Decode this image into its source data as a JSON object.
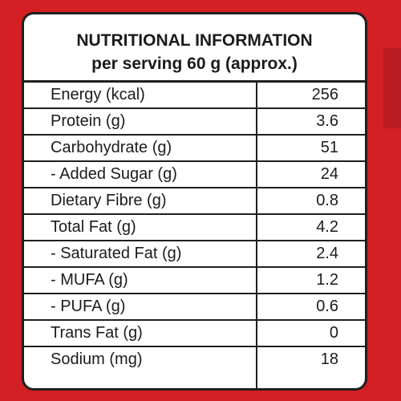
{
  "label": {
    "title": "NUTRITIONAL INFORMATION",
    "subtitle": "per serving 60 g (approx.)",
    "rows": [
      {
        "name": "Energy (kcal)",
        "value": "256"
      },
      {
        "name": "Protein (g)",
        "value": "3.6"
      },
      {
        "name": "Carbohydrate (g)",
        "value": "51"
      },
      {
        "name": "- Added Sugar (g)",
        "value": "24"
      },
      {
        "name": "Dietary Fibre (g)",
        "value": "0.8"
      },
      {
        "name": "Total Fat (g)",
        "value": "4.2"
      },
      {
        "name": "- Saturated Fat (g)",
        "value": "2.4"
      },
      {
        "name": "- MUFA (g)",
        "value": "1.2"
      },
      {
        "name": "- PUFA (g)",
        "value": "0.6"
      },
      {
        "name": "Trans Fat (g)",
        "value": "0"
      },
      {
        "name": "Sodium (mg)",
        "value": "18"
      }
    ]
  },
  "colors": {
    "background": "#d41f24",
    "panel": "#ffffff",
    "text": "#1b1b1b",
    "lines": "#1f1f1f"
  }
}
